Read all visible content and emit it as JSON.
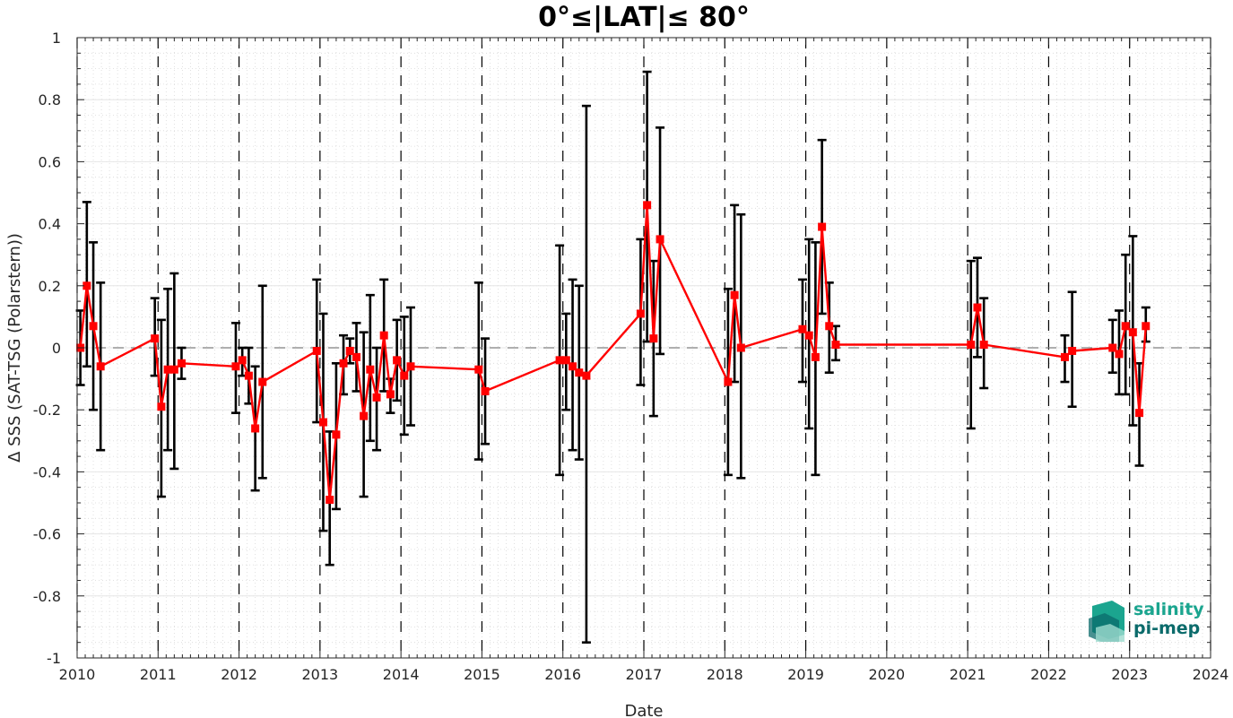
{
  "colors": {
    "series": "#ff0000",
    "errorbar": "#000000",
    "zero_line": "#7f7f7f",
    "grid": "#d9d9d9",
    "logo_primary": "#1ba58f",
    "logo_secondary": "#0b6b6b"
  },
  "logo": {
    "line1": "salinity",
    "line2": "pi-mep"
  },
  "chart_data": {
    "type": "line",
    "title": "0°≤|LAT|≤ 80°",
    "xlabel": "Date",
    "ylabel": "Δ SSS (SAT-TSG (Polarstern))",
    "xlim": [
      2010,
      2024
    ],
    "ylim": [
      -1,
      1
    ],
    "x_ticks": [
      "2010",
      "2011",
      "2012",
      "2013",
      "2014",
      "2015",
      "2016",
      "2017",
      "2018",
      "2019",
      "2020",
      "2021",
      "2022",
      "2023",
      "2024"
    ],
    "y_ticks": [
      "-1",
      "-0.8",
      "-0.6",
      "-0.4",
      "-0.2",
      "0",
      "0.2",
      "0.4",
      "0.6",
      "0.8",
      "1"
    ],
    "grid": true,
    "minor_grid": true,
    "year_dashed_lines": true,
    "zero_line": true,
    "series": [
      {
        "marker": "square",
        "points": [
          {
            "x": 2010.04,
            "y": 0.0,
            "lo": -0.12,
            "hi": 0.12
          },
          {
            "x": 2010.12,
            "y": 0.2,
            "lo": -0.06,
            "hi": 0.47
          },
          {
            "x": 2010.2,
            "y": 0.07,
            "lo": -0.2,
            "hi": 0.34
          },
          {
            "x": 2010.29,
            "y": -0.06,
            "lo": -0.33,
            "hi": 0.21
          },
          {
            "x": 2010.96,
            "y": 0.03,
            "lo": -0.09,
            "hi": 0.16
          },
          {
            "x": 2011.04,
            "y": -0.19,
            "lo": -0.48,
            "hi": 0.09
          },
          {
            "x": 2011.12,
            "y": -0.07,
            "lo": -0.33,
            "hi": 0.19
          },
          {
            "x": 2011.2,
            "y": -0.07,
            "lo": -0.39,
            "hi": 0.24
          },
          {
            "x": 2011.29,
            "y": -0.05,
            "lo": -0.1,
            "hi": 0.0
          },
          {
            "x": 2011.96,
            "y": -0.06,
            "lo": -0.21,
            "hi": 0.08
          },
          {
            "x": 2012.04,
            "y": -0.04,
            "lo": -0.09,
            "hi": 0.0
          },
          {
            "x": 2012.12,
            "y": -0.09,
            "lo": -0.18,
            "hi": 0.0
          },
          {
            "x": 2012.2,
            "y": -0.26,
            "lo": -0.46,
            "hi": -0.06
          },
          {
            "x": 2012.29,
            "y": -0.11,
            "lo": -0.42,
            "hi": 0.2
          },
          {
            "x": 2012.96,
            "y": -0.01,
            "lo": -0.24,
            "hi": 0.22
          },
          {
            "x": 2013.04,
            "y": -0.24,
            "lo": -0.59,
            "hi": 0.11
          },
          {
            "x": 2013.12,
            "y": -0.49,
            "lo": -0.7,
            "hi": -0.27
          },
          {
            "x": 2013.2,
            "y": -0.28,
            "lo": -0.52,
            "hi": -0.05
          },
          {
            "x": 2013.29,
            "y": -0.05,
            "lo": -0.15,
            "hi": 0.04
          },
          {
            "x": 2013.37,
            "y": -0.01,
            "lo": -0.05,
            "hi": 0.03
          },
          {
            "x": 2013.45,
            "y": -0.03,
            "lo": -0.14,
            "hi": 0.08
          },
          {
            "x": 2013.54,
            "y": -0.22,
            "lo": -0.48,
            "hi": 0.05
          },
          {
            "x": 2013.62,
            "y": -0.07,
            "lo": -0.3,
            "hi": 0.17
          },
          {
            "x": 2013.7,
            "y": -0.16,
            "lo": -0.33,
            "hi": 0.0
          },
          {
            "x": 2013.79,
            "y": 0.04,
            "lo": -0.14,
            "hi": 0.22
          },
          {
            "x": 2013.87,
            "y": -0.15,
            "lo": -0.21,
            "hi": -0.1
          },
          {
            "x": 2013.95,
            "y": -0.04,
            "lo": -0.17,
            "hi": 0.09
          },
          {
            "x": 2014.04,
            "y": -0.09,
            "lo": -0.28,
            "hi": 0.1
          },
          {
            "x": 2014.12,
            "y": -0.06,
            "lo": -0.25,
            "hi": 0.13
          },
          {
            "x": 2014.96,
            "y": -0.07,
            "lo": -0.36,
            "hi": 0.21
          },
          {
            "x": 2015.04,
            "y": -0.14,
            "lo": -0.31,
            "hi": 0.03
          },
          {
            "x": 2015.96,
            "y": -0.04,
            "lo": -0.41,
            "hi": 0.33
          },
          {
            "x": 2016.04,
            "y": -0.04,
            "lo": -0.2,
            "hi": 0.11
          },
          {
            "x": 2016.12,
            "y": -0.06,
            "lo": -0.33,
            "hi": 0.22
          },
          {
            "x": 2016.2,
            "y": -0.08,
            "lo": -0.36,
            "hi": 0.2
          },
          {
            "x": 2016.29,
            "y": -0.09,
            "lo": -0.95,
            "hi": 0.78
          },
          {
            "x": 2016.96,
            "y": 0.11,
            "lo": -0.12,
            "hi": 0.35
          },
          {
            "x": 2017.04,
            "y": 0.46,
            "lo": 0.02,
            "hi": 0.89
          },
          {
            "x": 2017.12,
            "y": 0.03,
            "lo": -0.22,
            "hi": 0.28
          },
          {
            "x": 2017.2,
            "y": 0.35,
            "lo": -0.02,
            "hi": 0.71
          },
          {
            "x": 2018.04,
            "y": -0.11,
            "lo": -0.41,
            "hi": 0.19
          },
          {
            "x": 2018.12,
            "y": 0.17,
            "lo": -0.11,
            "hi": 0.46
          },
          {
            "x": 2018.2,
            "y": 0.0,
            "lo": -0.42,
            "hi": 0.43
          },
          {
            "x": 2018.96,
            "y": 0.06,
            "lo": -0.11,
            "hi": 0.22
          },
          {
            "x": 2019.04,
            "y": 0.04,
            "lo": -0.26,
            "hi": 0.35
          },
          {
            "x": 2019.12,
            "y": -0.03,
            "lo": -0.41,
            "hi": 0.34
          },
          {
            "x": 2019.2,
            "y": 0.39,
            "lo": 0.11,
            "hi": 0.67
          },
          {
            "x": 2019.29,
            "y": 0.07,
            "lo": -0.08,
            "hi": 0.21
          },
          {
            "x": 2019.37,
            "y": 0.01,
            "lo": -0.04,
            "hi": 0.07
          },
          {
            "x": 2021.04,
            "y": 0.01,
            "lo": -0.26,
            "hi": 0.28
          },
          {
            "x": 2021.12,
            "y": 0.13,
            "lo": -0.03,
            "hi": 0.29
          },
          {
            "x": 2021.2,
            "y": 0.01,
            "lo": -0.13,
            "hi": 0.16
          },
          {
            "x": 2022.2,
            "y": -0.03,
            "lo": -0.11,
            "hi": 0.04
          },
          {
            "x": 2022.29,
            "y": -0.01,
            "lo": -0.19,
            "hi": 0.18
          },
          {
            "x": 2022.79,
            "y": 0.0,
            "lo": -0.08,
            "hi": 0.09
          },
          {
            "x": 2022.87,
            "y": -0.02,
            "lo": -0.15,
            "hi": 0.12
          },
          {
            "x": 2022.95,
            "y": 0.07,
            "lo": -0.15,
            "hi": 0.3
          },
          {
            "x": 2023.04,
            "y": 0.05,
            "lo": -0.25,
            "hi": 0.36
          },
          {
            "x": 2023.12,
            "y": -0.21,
            "lo": -0.38,
            "hi": -0.05
          },
          {
            "x": 2023.2,
            "y": 0.07,
            "lo": 0.02,
            "hi": 0.13
          }
        ]
      }
    ]
  }
}
